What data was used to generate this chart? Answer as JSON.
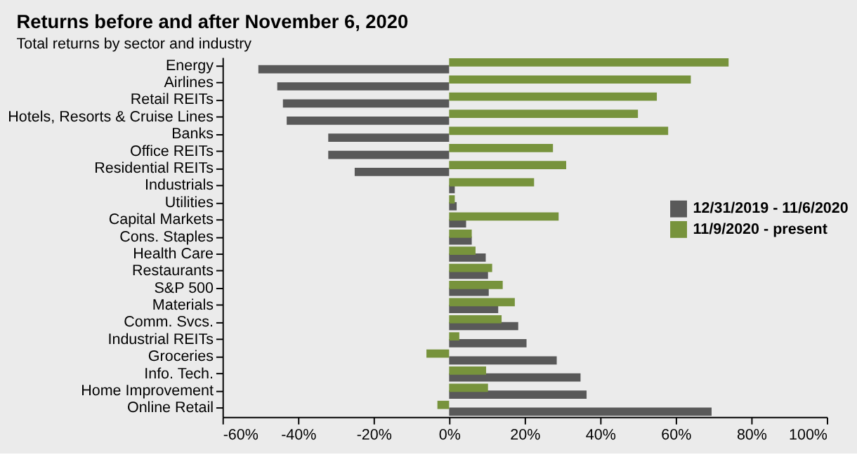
{
  "chart_data": {
    "type": "bar",
    "orientation": "horizontal",
    "title": "Returns before and after November 6, 2020",
    "subtitle": "Total returns by sector and industry",
    "categories": [
      "Energy",
      "Airlines",
      "Retail REITs",
      "Hotels, Resorts & Cruise Lines",
      "Banks",
      "Office REITs",
      "Residential REITs",
      "Industrials",
      "Utilities",
      "Capital Markets",
      "Cons. Staples",
      "Health Care",
      "Restaurants",
      "S&P 500",
      "Materials",
      "Comm. Svcs.",
      "Industrial REITs",
      "Groceries",
      "Info. Tech.",
      "Home Improvement",
      "Online Retail"
    ],
    "series": [
      {
        "name": "12/31/2019 - 11/6/2020",
        "color": "#595959",
        "values": [
          -50.5,
          -45.5,
          -44,
          -43,
          -32,
          -32,
          -25,
          1.5,
          2,
          4.5,
          6,
          9.7,
          10.3,
          10.5,
          13,
          18.3,
          20.5,
          28.5,
          34.8,
          36.4,
          69.5
        ]
      },
      {
        "name": "11/9/2020 - present",
        "color": "#77933c",
        "values": [
          74,
          64,
          55,
          50,
          58,
          27.5,
          31,
          22.5,
          1.5,
          29,
          6,
          7,
          11.4,
          14.2,
          17.4,
          13.9,
          2.7,
          -6,
          9.8,
          10.3,
          -3.1
        ]
      }
    ],
    "xlim": [
      -60,
      100
    ],
    "xticks": [
      {
        "value": -60,
        "label": "-60%"
      },
      {
        "value": -40,
        "label": "-40%"
      },
      {
        "value": -20,
        "label": "-20%"
      },
      {
        "value": 0,
        "label": "0%"
      },
      {
        "value": 20,
        "label": "20%"
      },
      {
        "value": 40,
        "label": "40%"
      },
      {
        "value": 60,
        "label": "60%"
      },
      {
        "value": 80,
        "label": "80%"
      },
      {
        "value": 100,
        "label": "100%"
      }
    ],
    "grid": false,
    "legend": "right"
  }
}
